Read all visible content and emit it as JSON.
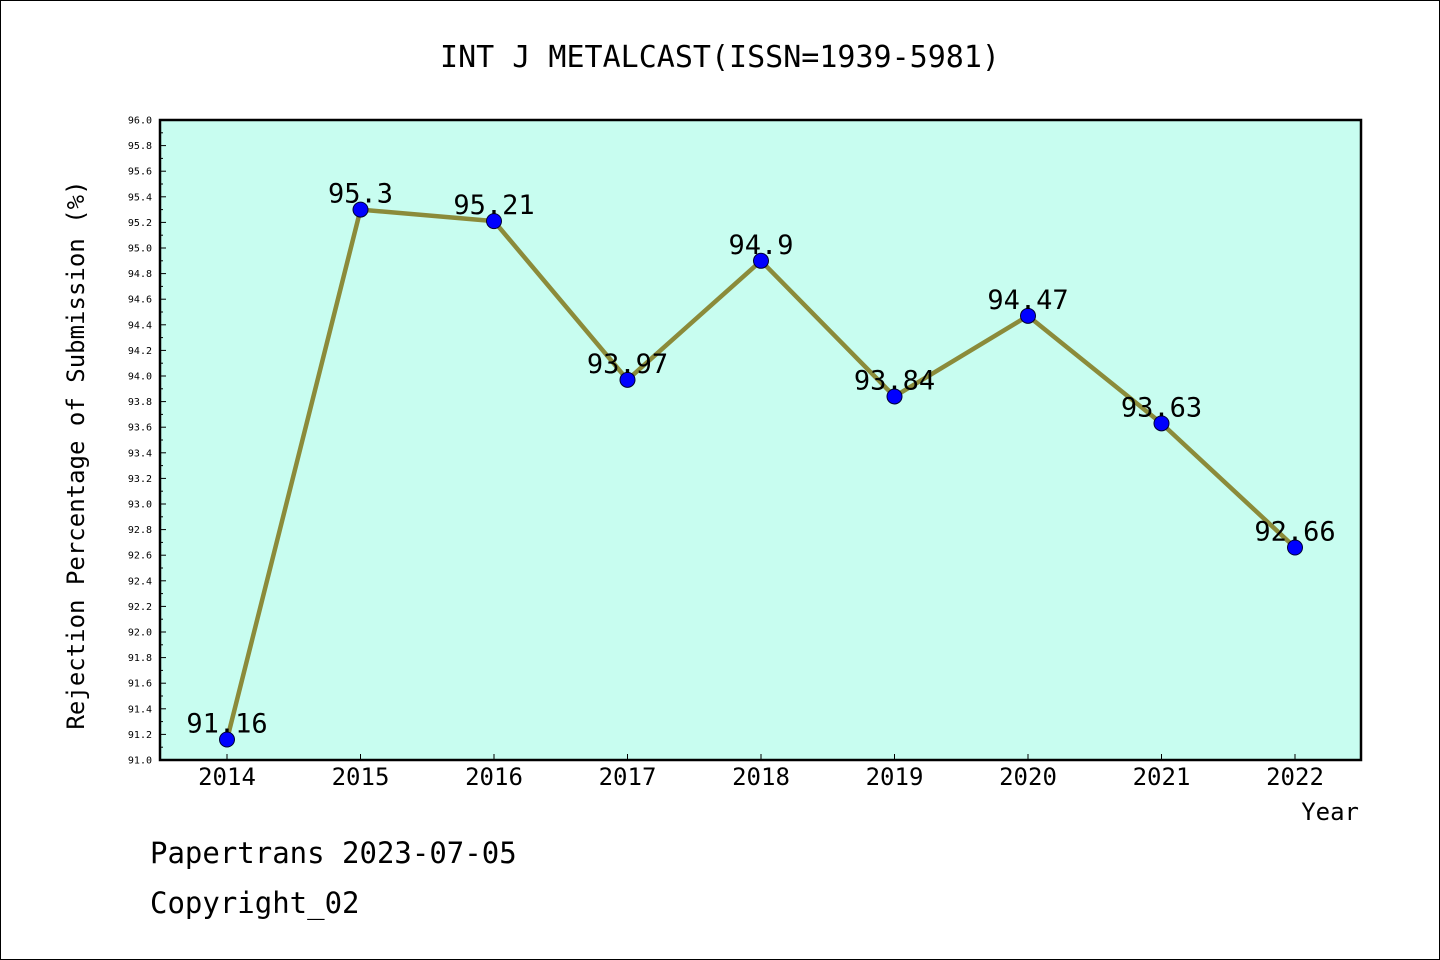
{
  "chart_data": {
    "type": "line",
    "title": "INT J METALCAST(ISSN=1939-5981)",
    "xlabel": "Year",
    "ylabel": "Rejection Percentage of Submission (%)",
    "categories": [
      "2014",
      "2015",
      "2016",
      "2017",
      "2018",
      "2019",
      "2020",
      "2021",
      "2022"
    ],
    "values": [
      91.16,
      95.3,
      95.21,
      93.97,
      94.9,
      93.84,
      94.47,
      93.63,
      92.66
    ],
    "data_labels": [
      "91.16",
      "95.3",
      "95.21",
      "93.97",
      "94.9",
      "93.84",
      "94.47",
      "93.63",
      "92.66"
    ],
    "ylim": [
      91.0,
      96.0
    ],
    "ytick_step": 0.2,
    "grid": false,
    "colors": {
      "plot_background": "#c8fdf0",
      "line": "#8b8b3a",
      "marker": "#0000ff"
    }
  },
  "footer": {
    "source": "Papertrans 2023-07-05",
    "copyright": "Copyright_02"
  }
}
